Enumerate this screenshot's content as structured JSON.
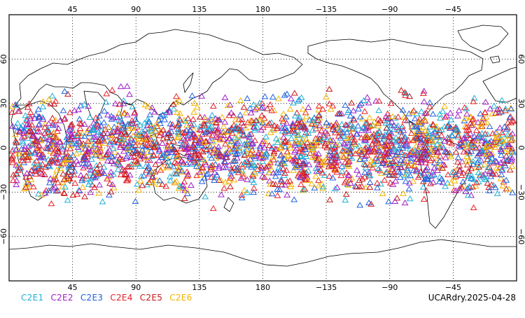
{
  "map": {
    "projection": "cylindrical-equidistant",
    "lon_range": [
      0,
      360
    ],
    "lat_range": [
      -90,
      90
    ],
    "grid": true,
    "lon_ticks": [
      "45",
      "90",
      "135",
      "180",
      "−135",
      "−90",
      "−45"
    ],
    "lat_ticks": [
      "60",
      "30",
      "0",
      "−30",
      "−60"
    ],
    "marker_shape": "open-triangle",
    "coverage_lat": [
      -45,
      45
    ]
  },
  "legend": [
    {
      "label": "C2E1",
      "color": "#1fb1d6"
    },
    {
      "label": "C2E2",
      "color": "#a020c8"
    },
    {
      "label": "C2E3",
      "color": "#2060e0"
    },
    {
      "label": "C2E4",
      "color": "#e8202a"
    },
    {
      "label": "C2E5",
      "color": "#c81818"
    },
    {
      "label": "C2E6",
      "color": "#f4b400"
    }
  ],
  "date_label": "UCARdry.2025-04-28"
}
